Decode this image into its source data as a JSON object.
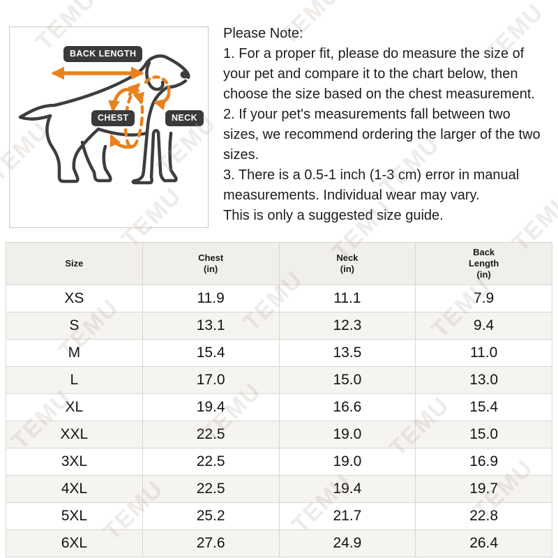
{
  "diagram": {
    "back_length_label": "BACK LENGTH",
    "chest_label": "CHEST",
    "neck_label": "NECK"
  },
  "note": {
    "lines": [
      "Please Note:",
      "1. For a proper fit, please do measure the size of",
      "your pet and compare it to the chart below, then",
      "choose the size based on the chest measurement.",
      "2. If your pet's measurements fall between two",
      "sizes, we recommend ordering the larger of the two",
      "sizes.",
      "3. There is a 0.5-1 inch (1-3 cm) error in manual",
      "measurements. Individual wear may vary.",
      "This is only a suggested size guide."
    ]
  },
  "watermark": {
    "text": "TEMU"
  },
  "table": {
    "columns": [
      "Size",
      "Chest\n(in)",
      "Neck\n(in)",
      "Back\nLength\n(in)"
    ],
    "rows": [
      [
        "XS",
        "11.9",
        "11.1",
        "7.9"
      ],
      [
        "S",
        "13.1",
        "12.3",
        "9.4"
      ],
      [
        "M",
        "15.4",
        "13.5",
        "11.0"
      ],
      [
        "L",
        "17.0",
        "15.0",
        "13.0"
      ],
      [
        "XL",
        "19.4",
        "16.6",
        "15.4"
      ],
      [
        "XXL",
        "22.5",
        "19.0",
        "15.0"
      ],
      [
        "3XL",
        "22.5",
        "19.0",
        "16.9"
      ],
      [
        "4XL",
        "22.5",
        "19.4",
        "19.7"
      ],
      [
        "5XL",
        "25.2",
        "21.7",
        "22.8"
      ],
      [
        "6XL",
        "27.6",
        "24.9",
        "26.4"
      ]
    ]
  },
  "colors": {
    "accent_orange": "#e8821c",
    "label_pill_dark": "#3a3a3a",
    "table_header_bg": "#f1efeb",
    "row_stripe": "#f5f4f1"
  }
}
